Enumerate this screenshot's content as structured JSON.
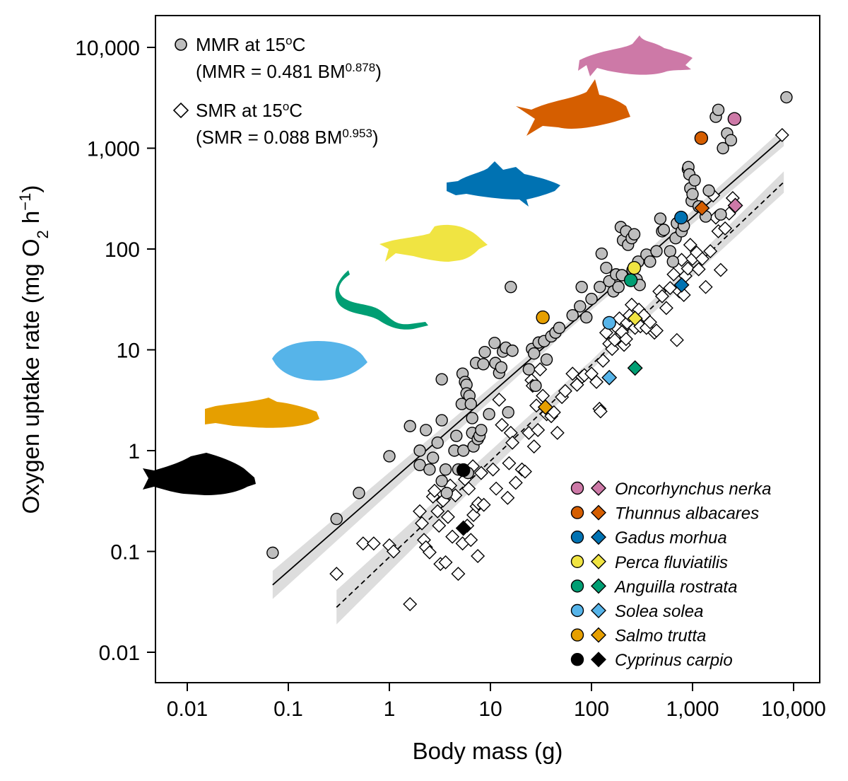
{
  "chart_data": {
    "type": "scatter",
    "x_scale": "log10",
    "y_scale": "log10",
    "xlabel": "Body mass (g)",
    "ylabel_parts": {
      "main": "Oxygen uptake rate (mg O",
      "sub": "2",
      "mid": " h",
      "sup": "−1",
      "end": ")"
    },
    "xlim": [
      0.005,
      15000
    ],
    "ylim": [
      0.005,
      20000
    ],
    "x_ticks": [
      {
        "value": 0.01,
        "label": "0.01"
      },
      {
        "value": 0.1,
        "label": "0.1"
      },
      {
        "value": 1,
        "label": "1"
      },
      {
        "value": 10,
        "label": "10"
      },
      {
        "value": 100,
        "label": "100"
      },
      {
        "value": 1000,
        "label": "1,000"
      },
      {
        "value": 10000,
        "label": "10,000"
      }
    ],
    "y_ticks": [
      {
        "value": 0.01,
        "label": "0.01"
      },
      {
        "value": 0.1,
        "label": "0.1"
      },
      {
        "value": 1,
        "label": "1"
      },
      {
        "value": 10,
        "label": "10"
      },
      {
        "value": 100,
        "label": "100"
      },
      {
        "value": 1000,
        "label": "1,000"
      },
      {
        "value": 10000,
        "label": "10,000"
      }
    ],
    "legend_metrics": [
      {
        "marker": "circle",
        "line1_a": "MMR at 15",
        "line1_sup": "o",
        "line1_b": "C",
        "line2_a": "(MMR = 0.481 BM",
        "line2_sup": "0.878",
        "line2_b": ")"
      },
      {
        "marker": "diamond",
        "line1_a": "SMR at 15",
        "line1_sup": "o",
        "line1_b": "C",
        "line2_a": "(SMR = 0.088 BM",
        "line2_sup": "0.953",
        "line2_b": ")"
      }
    ],
    "fits": [
      {
        "name": "MMR",
        "a": 0.481,
        "b": 0.878,
        "x_range": [
          0.07,
          8000
        ],
        "dash": "solid",
        "ci_halfwidth_low_log10": 0.14,
        "ci_halfwidth_high_log10": 0.1
      },
      {
        "name": "SMR",
        "a": 0.088,
        "b": 0.953,
        "x_range": [
          0.3,
          8000
        ],
        "dash": "dashed",
        "ci_halfwidth_low_log10": 0.17,
        "ci_halfwidth_high_log10": 0.12
      }
    ],
    "mmr_points": [
      [
        0.07,
        0.097
      ],
      [
        0.3,
        0.21
      ],
      [
        0.5,
        0.38
      ],
      [
        1,
        0.88
      ],
      [
        1.6,
        1.75
      ],
      [
        2,
        1.0
      ],
      [
        2,
        0.72
      ],
      [
        2.3,
        1.6
      ],
      [
        2.5,
        0.65
      ],
      [
        2.7,
        0.85
      ],
      [
        3,
        1.2
      ],
      [
        3.3,
        0.5
      ],
      [
        3.3,
        2.0
      ],
      [
        3.3,
        5.1
      ],
      [
        3.6,
        0.65
      ],
      [
        3.7,
        0.38
      ],
      [
        4.4,
        1.0
      ],
      [
        4.6,
        1.4
      ],
      [
        4.8,
        0.65
      ],
      [
        5.2,
        2.9
      ],
      [
        5.3,
        5.8
      ],
      [
        5.4,
        1.0
      ],
      [
        5.6,
        4.8
      ],
      [
        5.8,
        4.5
      ],
      [
        5.8,
        3.7
      ],
      [
        6,
        0.6
      ],
      [
        6.2,
        3.5
      ],
      [
        6.4,
        2.9
      ],
      [
        6.6,
        2.1
      ],
      [
        6.6,
        1.5
      ],
      [
        6.8,
        1.1
      ],
      [
        7.2,
        7.4
      ],
      [
        7.5,
        1.3
      ],
      [
        7.8,
        1.4
      ],
      [
        8.1,
        1.6
      ],
      [
        8.5,
        7.2
      ],
      [
        8.8,
        9.5
      ],
      [
        9.7,
        2.3
      ],
      [
        11,
        11.7
      ],
      [
        11.2,
        7.4
      ],
      [
        12.2,
        5.9
      ],
      [
        12.8,
        6.7
      ],
      [
        13.3,
        9.6
      ],
      [
        14.2,
        10.5
      ],
      [
        15,
        2.4
      ],
      [
        15.9,
        42
      ],
      [
        16.5,
        9.8
      ],
      [
        24,
        6.4
      ],
      [
        25.8,
        10.2
      ],
      [
        27,
        9.2
      ],
      [
        28,
        4.4
      ],
      [
        30,
        11.8
      ],
      [
        34,
        12.2
      ],
      [
        36,
        8
      ],
      [
        40,
        13.6
      ],
      [
        44,
        14.8
      ],
      [
        48,
        16.5
      ],
      [
        65,
        22
      ],
      [
        77,
        27
      ],
      [
        80,
        42
      ],
      [
        89,
        21
      ],
      [
        100,
        32
      ],
      [
        121,
        42
      ],
      [
        126,
        90
      ],
      [
        140,
        65
      ],
      [
        150,
        48
      ],
      [
        165,
        38
      ],
      [
        175,
        56
      ],
      [
        185,
        42
      ],
      [
        195,
        165
      ],
      [
        200,
        55
      ],
      [
        205,
        122
      ],
      [
        220,
        150
      ],
      [
        230,
        110
      ],
      [
        250,
        128
      ],
      [
        255,
        62
      ],
      [
        265,
        140
      ],
      [
        280,
        50
      ],
      [
        290,
        75
      ],
      [
        300,
        44
      ],
      [
        350,
        88
      ],
      [
        380,
        75
      ],
      [
        440,
        95
      ],
      [
        480,
        200
      ],
      [
        500,
        150
      ],
      [
        520,
        155
      ],
      [
        600,
        95
      ],
      [
        640,
        75
      ],
      [
        680,
        128
      ],
      [
        700,
        180
      ],
      [
        780,
        150
      ],
      [
        820,
        170
      ],
      [
        900,
        620
      ],
      [
        910,
        650
      ],
      [
        930,
        550
      ],
      [
        950,
        400
      ],
      [
        980,
        300
      ],
      [
        1000,
        350
      ],
      [
        1050,
        480
      ],
      [
        1150,
        265
      ],
      [
        1350,
        210
      ],
      [
        1450,
        380
      ],
      [
        1700,
        2050
      ],
      [
        1800,
        2400
      ],
      [
        1900,
        220
      ],
      [
        2000,
        1000
      ],
      [
        2200,
        1400
      ],
      [
        2400,
        1200
      ],
      [
        8500,
        3200
      ]
    ],
    "smr_points": [
      [
        0.3,
        0.06
      ],
      [
        0.55,
        0.12
      ],
      [
        0.7,
        0.12
      ],
      [
        1.0,
        0.115
      ],
      [
        1.1,
        0.1
      ],
      [
        1.6,
        0.03
      ],
      [
        2.0,
        0.25
      ],
      [
        2.1,
        0.19
      ],
      [
        2.2,
        0.13
      ],
      [
        2.3,
        0.11
      ],
      [
        2.5,
        0.098
      ],
      [
        2.7,
        0.35
      ],
      [
        2.8,
        0.4
      ],
      [
        3.0,
        0.25
      ],
      [
        3.1,
        0.18
      ],
      [
        3.2,
        0.075
      ],
      [
        3.4,
        0.32
      ],
      [
        3.6,
        0.078
      ],
      [
        3.8,
        0.22
      ],
      [
        4.0,
        0.45
      ],
      [
        4.2,
        0.14
      ],
      [
        4.5,
        0.36
      ],
      [
        4.8,
        0.06
      ],
      [
        5.3,
        0.12
      ],
      [
        5.6,
        0.52
      ],
      [
        5.9,
        0.18
      ],
      [
        6.1,
        0.42
      ],
      [
        6.4,
        0.13
      ],
      [
        6.7,
        0.7
      ],
      [
        6.8,
        0.23
      ],
      [
        7.3,
        0.28
      ],
      [
        7.5,
        0.09
      ],
      [
        7.6,
        0.3
      ],
      [
        8.1,
        0.6
      ],
      [
        8.6,
        0.29
      ],
      [
        10.6,
        0.65
      ],
      [
        11.4,
        0.42
      ],
      [
        12.2,
        3.2
      ],
      [
        13.0,
        1.8
      ],
      [
        14.8,
        0.34
      ],
      [
        15.3,
        0.75
      ],
      [
        15.9,
        1.5
      ],
      [
        16.5,
        1.2
      ],
      [
        17.8,
        0.48
      ],
      [
        20.5,
        0.65
      ],
      [
        22.0,
        0.62
      ],
      [
        24.0,
        1.5
      ],
      [
        25.5,
        5.0
      ],
      [
        26.2,
        4.4
      ],
      [
        27.0,
        1.1
      ],
      [
        28.5,
        2.8
      ],
      [
        29.5,
        1.6
      ],
      [
        31.0,
        6.4
      ],
      [
        33.0,
        3.5
      ],
      [
        36.0,
        2.3
      ],
      [
        40.0,
        2.2
      ],
      [
        42.5,
        2.4
      ],
      [
        46.0,
        1.5
      ],
      [
        51.0,
        3.4
      ],
      [
        55.0,
        3.9
      ],
      [
        65.0,
        5.8
      ],
      [
        72.0,
        4.5
      ],
      [
        81.0,
        5.4
      ],
      [
        85.0,
        5.6
      ],
      [
        100.0,
        5.8
      ],
      [
        112.0,
        4.8
      ],
      [
        120.0,
        2.6
      ],
      [
        123.0,
        2.45
      ],
      [
        130.0,
        7.8
      ],
      [
        140.0,
        14.8
      ],
      [
        150.0,
        11.5
      ],
      [
        160.0,
        10.2
      ],
      [
        170.0,
        12.5
      ],
      [
        178.0,
        16.6
      ],
      [
        189.0,
        20.5
      ],
      [
        200.0,
        15
      ],
      [
        210.0,
        11.2
      ],
      [
        220.0,
        12.8
      ],
      [
        225.0,
        18.5
      ],
      [
        238.0,
        22
      ],
      [
        250.0,
        28
      ],
      [
        270.0,
        16.5
      ],
      [
        280.0,
        20.8
      ],
      [
        295.0,
        25
      ],
      [
        305.0,
        17.1
      ],
      [
        330.0,
        22
      ],
      [
        350.0,
        16.5
      ],
      [
        380.0,
        18.8
      ],
      [
        420.0,
        14.8
      ],
      [
        440.0,
        15.5
      ],
      [
        470.0,
        38
      ],
      [
        500.0,
        34
      ],
      [
        550.0,
        26
      ],
      [
        600.0,
        41
      ],
      [
        650.0,
        56
      ],
      [
        700.0,
        12.5
      ],
      [
        740.0,
        38
      ],
      [
        780.0,
        78
      ],
      [
        820.0,
        35
      ],
      [
        850.0,
        54
      ],
      [
        900.0,
        64
      ],
      [
        950.0,
        110
      ],
      [
        1000.0,
        80
      ],
      [
        1100.0,
        92
      ],
      [
        1150.0,
        63
      ],
      [
        1250.0,
        80
      ],
      [
        1350.0,
        42
      ],
      [
        1500.0,
        95
      ],
      [
        1600.0,
        340
      ],
      [
        1700.0,
        205
      ],
      [
        1800.0,
        150
      ],
      [
        1900.0,
        62
      ],
      [
        2100.0,
        160
      ],
      [
        2300.0,
        225
      ],
      [
        2500.0,
        320
      ],
      [
        7700.0,
        1350
      ]
    ],
    "species": [
      {
        "name": "Oncorhynchus nerka",
        "color": "#CD79A7",
        "mmr": [
          2600,
          1950
        ],
        "smr": [
          2650,
          270
        ]
      },
      {
        "name": "Thunnus albacares",
        "color": "#D55E00",
        "mmr": [
          1220,
          1260
        ],
        "smr": [
          1240,
          255
        ]
      },
      {
        "name": "Gadus morhua",
        "color": "#0072B2",
        "mmr": [
          770,
          205
        ],
        "smr": [
          780,
          44
        ]
      },
      {
        "name": "Perca fluviatilis",
        "color": "#F0E442",
        "mmr": [
          265,
          65
        ],
        "smr": [
          270,
          20.5
        ]
      },
      {
        "name": "Anguilla rostrata",
        "color": "#009E73",
        "mmr": [
          245,
          49
        ],
        "smr": [
          270,
          6.6
        ]
      },
      {
        "name": "Solea solea",
        "color": "#56B4E9",
        "mmr": [
          150,
          18.5
        ],
        "smr": [
          150,
          5.3
        ]
      },
      {
        "name": "Salmo trutta",
        "color": "#E69F00",
        "mmr": [
          33,
          21
        ],
        "smr": [
          35,
          2.7
        ]
      },
      {
        "name": "Cyprinus carpio",
        "color": "#000000",
        "mmr": [
          5.4,
          0.64
        ],
        "smr": [
          5.4,
          0.17
        ]
      }
    ],
    "point_fill_generic": "#BEBEBE",
    "ci_band_color": "#DDDDDD"
  }
}
